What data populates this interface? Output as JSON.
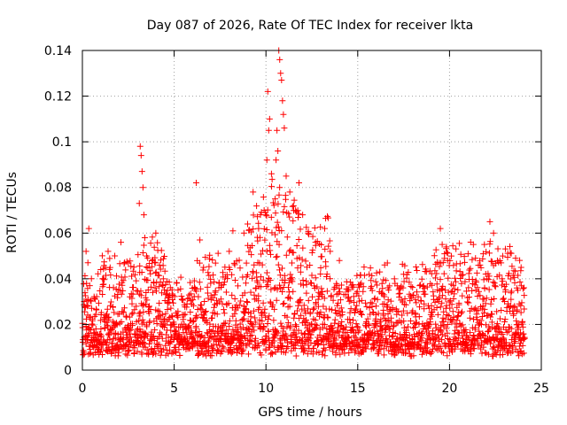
{
  "chart_data": {
    "type": "scatter",
    "title": "Day 087 of 2026, Rate Of TEC Index for receiver lkta",
    "xlabel": "GPS time / hours",
    "ylabel": "ROTI / TECUs",
    "xlim": [
      0,
      25
    ],
    "ylim": [
      0,
      0.14
    ],
    "x_ticks": [
      0,
      5,
      10,
      15,
      20,
      25
    ],
    "x_tick_labels": [
      "0",
      "5",
      "10",
      "15",
      "20",
      "25"
    ],
    "y_ticks": [
      0,
      0.02,
      0.04,
      0.06,
      0.08,
      0.1,
      0.12,
      0.14
    ],
    "y_tick_labels": [
      "0",
      "0.02",
      "0.04",
      "0.06",
      "0.08",
      "0.1",
      "0.12",
      "0.14"
    ],
    "grid": true,
    "marker": "+",
    "marker_color": "#ff0000",
    "series": [
      {
        "name": "ROTI",
        "points": [
          [
            0.2,
            0.052
          ],
          [
            0.3,
            0.047
          ],
          [
            0.35,
            0.062
          ],
          [
            0.4,
            0.037
          ],
          [
            1.0,
            0.044
          ],
          [
            1.1,
            0.04
          ],
          [
            1.4,
            0.052
          ],
          [
            2.1,
            0.056
          ],
          [
            3.1,
            0.073
          ],
          [
            3.15,
            0.098
          ],
          [
            3.2,
            0.094
          ],
          [
            3.25,
            0.087
          ],
          [
            3.3,
            0.08
          ],
          [
            3.35,
            0.068
          ],
          [
            3.4,
            0.058
          ],
          [
            3.5,
            0.05
          ],
          [
            3.8,
            0.048
          ],
          [
            4.0,
            0.06
          ],
          [
            4.2,
            0.046
          ],
          [
            6.2,
            0.082
          ],
          [
            6.4,
            0.057
          ],
          [
            6.6,
            0.045
          ],
          [
            8.0,
            0.052
          ],
          [
            8.2,
            0.061
          ],
          [
            8.8,
            0.06
          ],
          [
            9.0,
            0.064
          ],
          [
            9.3,
            0.078
          ],
          [
            9.6,
            0.062
          ],
          [
            9.7,
            0.068
          ],
          [
            9.9,
            0.07
          ],
          [
            10.0,
            0.068
          ],
          [
            10.05,
            0.092
          ],
          [
            10.1,
            0.122
          ],
          [
            10.15,
            0.105
          ],
          [
            10.2,
            0.11
          ],
          [
            10.3,
            0.086
          ],
          [
            10.5,
            0.075
          ],
          [
            10.55,
            0.092
          ],
          [
            10.6,
            0.105
          ],
          [
            10.65,
            0.096
          ],
          [
            10.7,
            0.14
          ],
          [
            10.75,
            0.136
          ],
          [
            10.8,
            0.13
          ],
          [
            10.85,
            0.127
          ],
          [
            10.9,
            0.118
          ],
          [
            10.95,
            0.112
          ],
          [
            11.0,
            0.106
          ],
          [
            11.1,
            0.085
          ],
          [
            11.3,
            0.078
          ],
          [
            11.5,
            0.072
          ],
          [
            11.8,
            0.082
          ],
          [
            12.0,
            0.068
          ],
          [
            12.3,
            0.06
          ],
          [
            12.7,
            0.056
          ],
          [
            13.2,
            0.062
          ],
          [
            13.5,
            0.052
          ],
          [
            14.0,
            0.048
          ],
          [
            16.2,
            0.043
          ],
          [
            17.0,
            0.04
          ],
          [
            17.5,
            0.042
          ],
          [
            19.5,
            0.062
          ],
          [
            19.6,
            0.055
          ],
          [
            19.9,
            0.048
          ],
          [
            20.1,
            0.05
          ],
          [
            21.3,
            0.055
          ],
          [
            21.9,
            0.055
          ],
          [
            22.2,
            0.065
          ],
          [
            22.4,
            0.06
          ],
          [
            22.9,
            0.05
          ],
          [
            23.6,
            0.049
          ],
          [
            23.9,
            0.045
          ]
        ]
      }
    ]
  }
}
